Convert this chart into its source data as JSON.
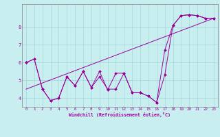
{
  "title": "",
  "xlabel": "Windchill (Refroidissement éolien,°C)",
  "bg_color": "#c8eef0",
  "line_color": "#990099",
  "xlim": [
    -0.5,
    23.5
  ],
  "ylim": [
    3.5,
    9.3
  ],
  "xticks": [
    0,
    1,
    2,
    3,
    4,
    5,
    6,
    7,
    8,
    9,
    10,
    11,
    12,
    13,
    14,
    15,
    16,
    17,
    18,
    19,
    20,
    21,
    22,
    23
  ],
  "yticks": [
    4,
    5,
    6,
    7,
    8
  ],
  "series1_x": [
    0,
    1,
    2,
    3,
    4,
    5,
    6,
    7,
    8,
    9,
    10,
    11,
    12,
    13,
    14,
    15,
    16,
    17,
    18,
    19,
    20,
    21,
    22,
    23
  ],
  "series1_y": [
    6.0,
    6.2,
    4.5,
    3.85,
    4.0,
    5.2,
    4.7,
    5.5,
    4.6,
    5.2,
    4.5,
    4.5,
    5.4,
    4.3,
    4.3,
    4.1,
    3.75,
    5.3,
    8.1,
    8.65,
    8.7,
    8.65,
    8.5,
    8.5
  ],
  "series2_x": [
    0,
    1,
    2,
    3,
    4,
    5,
    6,
    7,
    8,
    9,
    10,
    11,
    12,
    13,
    14,
    15,
    16,
    17,
    18,
    19,
    20,
    21,
    22,
    23
  ],
  "series2_y": [
    6.0,
    6.2,
    4.5,
    3.85,
    4.0,
    5.2,
    4.7,
    5.5,
    4.6,
    5.5,
    4.45,
    5.4,
    5.4,
    4.3,
    4.3,
    4.1,
    3.75,
    6.7,
    8.1,
    8.65,
    8.7,
    8.65,
    8.5,
    8.5
  ],
  "series3_x": [
    0,
    23
  ],
  "series3_y": [
    4.5,
    8.5
  ]
}
